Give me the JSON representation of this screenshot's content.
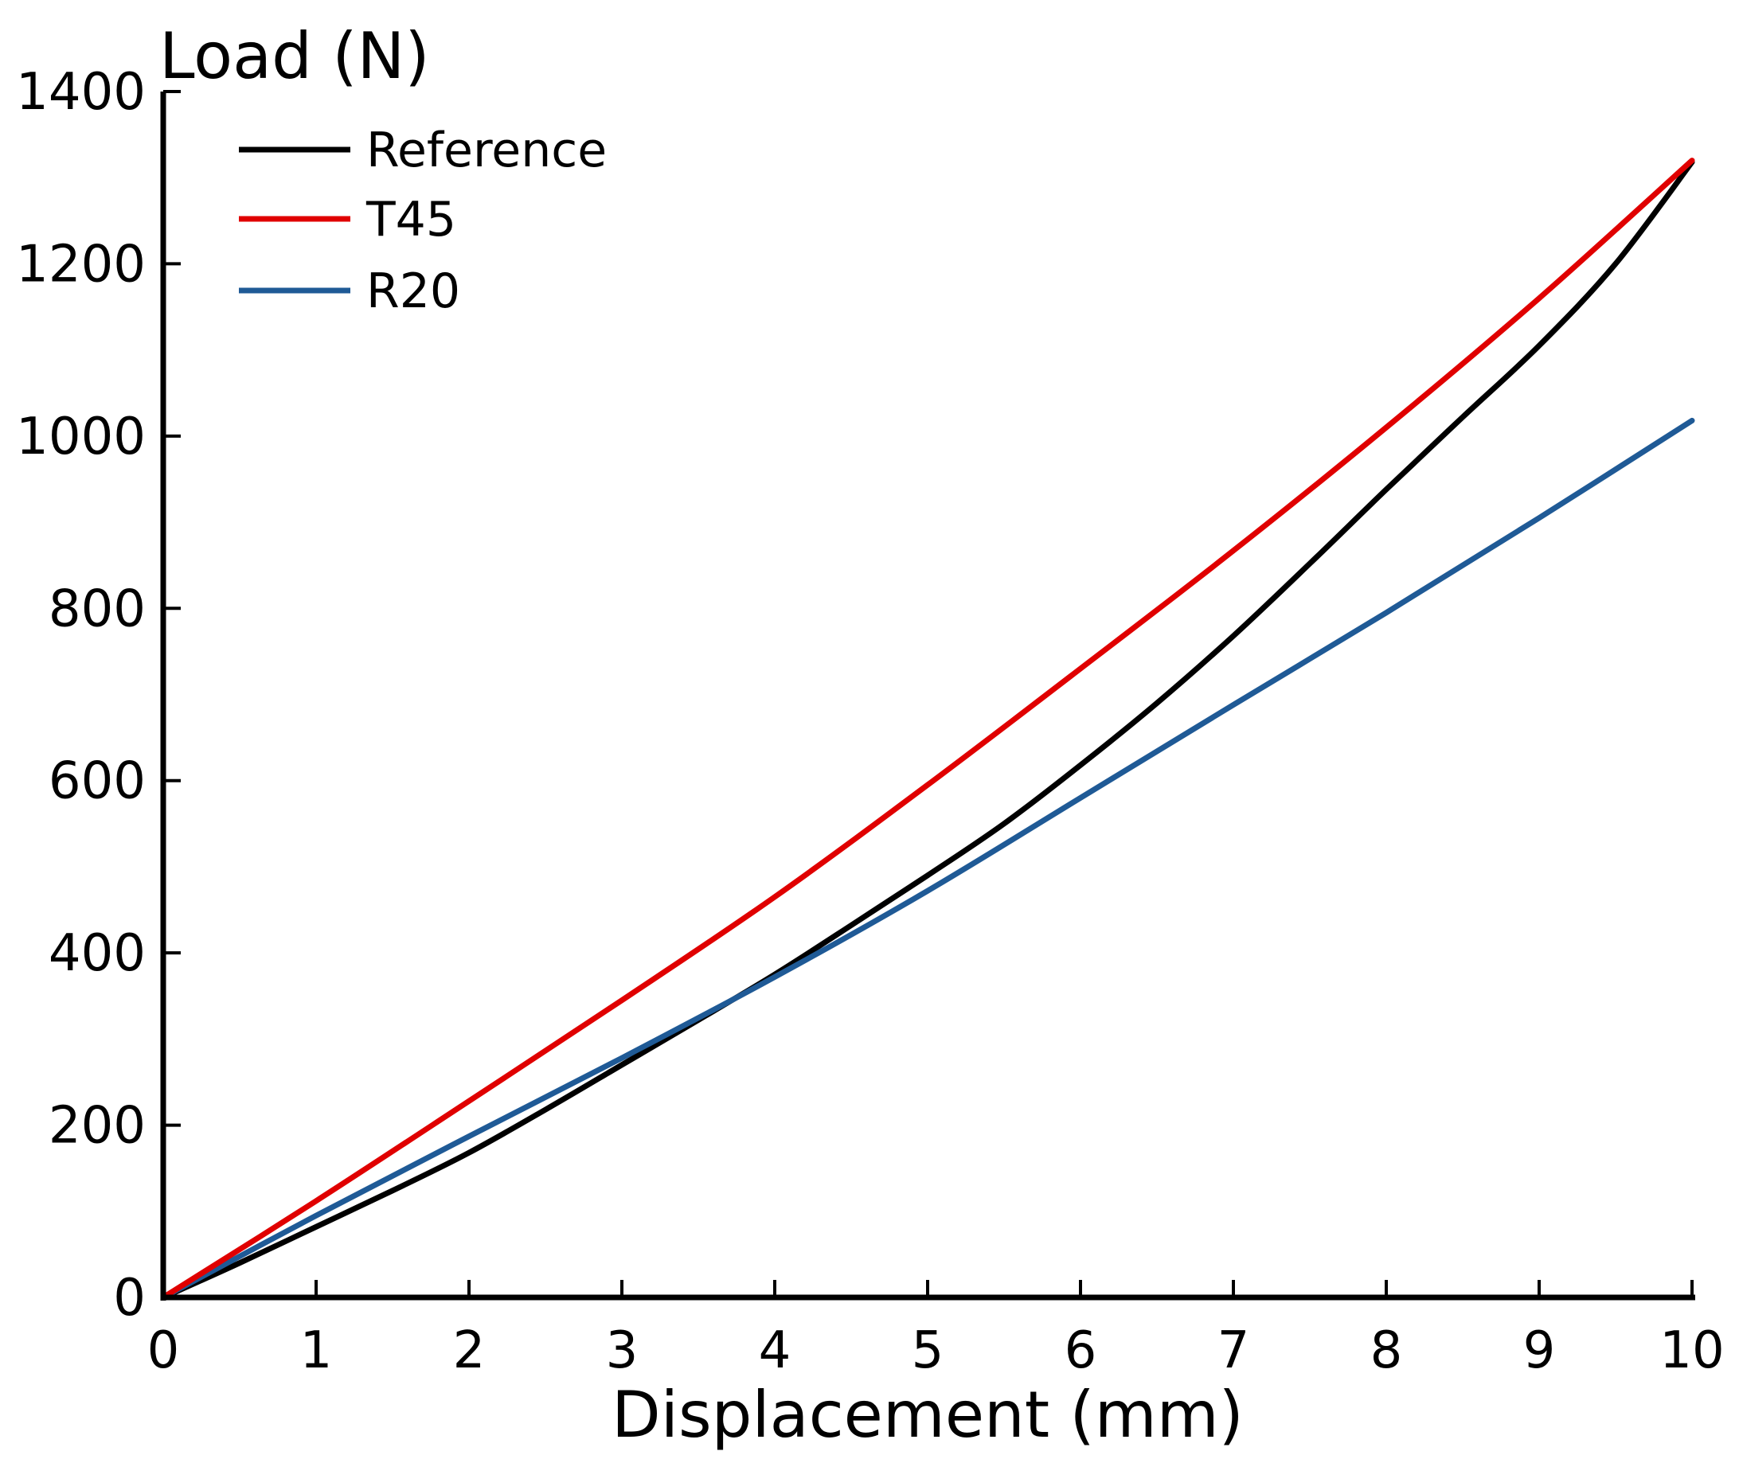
{
  "chart_data": {
    "type": "line",
    "title": "",
    "xlabel": "Displacement (mm)",
    "ylabel": "Load (N)",
    "xlim": [
      0,
      10
    ],
    "ylim": [
      0,
      1400
    ],
    "xticks": [
      0,
      1,
      2,
      3,
      4,
      5,
      6,
      7,
      8,
      9,
      10
    ],
    "yticks": [
      0,
      200,
      400,
      600,
      800,
      1000,
      1200,
      1400
    ],
    "grid": false,
    "legend_position": "top-left",
    "series": [
      {
        "name": "Reference",
        "color": "#000000",
        "x": [
          0,
          0.5,
          1,
          1.5,
          2,
          2.5,
          3,
          3.5,
          4,
          4.5,
          5,
          5.5,
          6,
          6.5,
          7,
          7.5,
          8,
          8.5,
          9,
          9.5,
          10
        ],
        "y": [
          0,
          40,
          82,
          124,
          168,
          218,
          270,
          322,
          375,
          432,
          490,
          550,
          618,
          690,
          768,
          852,
          938,
          1022,
          1105,
          1200,
          1318
        ]
      },
      {
        "name": "T45",
        "color": "#e00000",
        "x": [
          0,
          1,
          2,
          3,
          4,
          5,
          6,
          7,
          8,
          9,
          10
        ],
        "y": [
          0,
          112,
          228,
          345,
          465,
          595,
          730,
          867,
          1010,
          1160,
          1320
        ]
      },
      {
        "name": "R20",
        "color": "#1f5a96",
        "x": [
          0,
          1,
          2,
          3,
          4,
          5,
          6,
          7,
          8,
          9,
          10
        ],
        "y": [
          0,
          95,
          187,
          278,
          372,
          472,
          580,
          688,
          795,
          905,
          1018
        ]
      }
    ]
  }
}
